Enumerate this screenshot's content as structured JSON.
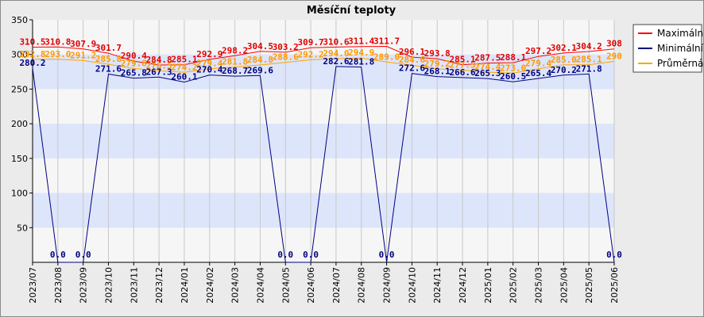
{
  "chart_data": {
    "type": "line",
    "title": "Měsíční teploty",
    "xlabel": "",
    "ylabel": "",
    "ylim": [
      0,
      350
    ],
    "yticks": [
      50,
      100,
      150,
      200,
      250,
      300,
      350
    ],
    "grid": true,
    "legend_position": "top-right",
    "categories": [
      "2023/07",
      "2023/08",
      "2023/09",
      "2023/10",
      "2023/11",
      "2023/12",
      "2024/01",
      "2024/02",
      "2024/03",
      "2024/04",
      "2024/05",
      "2024/06",
      "2024/07",
      "2024/08",
      "2024/09",
      "2024/10",
      "2024/11",
      "2024/12",
      "2025/01",
      "2025/02",
      "2025/03",
      "2025/04",
      "2025/05",
      "2025/06"
    ],
    "series": [
      {
        "name": "Maximální",
        "color": "#ff0000",
        "label_color": "#e00000",
        "values": [
          310.5,
          310.8,
          307.9,
          301.7,
          290.4,
          284.8,
          285.1,
          292.9,
          298.2,
          304.5,
          303.2,
          309.7,
          310.6,
          311.4,
          311.7,
          296.1,
          293.8,
          285.1,
          287.5,
          288.1,
          297.2,
          302.1,
          304.2,
          308.0
        ],
        "labels": [
          "310.5",
          "310.8",
          "307.9",
          "301.7",
          "290.4",
          "284.8",
          "285.1",
          "292.9",
          "298.2",
          "304.5",
          "303.2",
          "309.7",
          "310.6",
          "311.4",
          "311.7",
          "296.1",
          "293.8",
          "285.1",
          "287.5",
          "288.1",
          "297.2",
          "302.1",
          "304.2",
          "308"
        ]
      },
      {
        "name": "Minimální",
        "color": "#000080",
        "label_color": "#000080",
        "values": [
          280.2,
          0.0,
          0.0,
          271.6,
          265.8,
          267.3,
          260.1,
          270.4,
          268.7,
          269.6,
          0.0,
          0.0,
          282.6,
          281.8,
          0.0,
          272.6,
          268.1,
          266.6,
          265.3,
          260.5,
          265.4,
          270.2,
          271.8,
          0.0
        ],
        "labels": [
          "280.2",
          "0.0",
          "0.0",
          "271.6",
          "265.8",
          "267.3",
          "260.1",
          "270.4",
          "268.7",
          "269.6",
          "0.0",
          "0.0",
          "282.6",
          "281.8",
          "0.0",
          "272.6",
          "268.1",
          "266.6",
          "265.3",
          "260.5",
          "265.4",
          "270.2",
          "271.8",
          "0.0"
        ]
      },
      {
        "name": "Průměrná",
        "color": "#ffa500",
        "label_color": "#ff9900",
        "values": [
          292.8,
          293.0,
          291.2,
          285.8,
          279.8,
          276.5,
          274.2,
          279.4,
          281.8,
          284.8,
          288.6,
          292.2,
          294.0,
          294.9,
          289.0,
          284.6,
          279.2,
          277.5,
          274.4,
          273.0,
          279.4,
          285.0,
          285.1,
          290.0
        ],
        "labels": [
          "292.8",
          "293.0",
          "291.2",
          "285.8",
          "279.8",
          "276.5",
          "274.2",
          "279.4",
          "281.8",
          "284.8",
          "288.6",
          "292.2",
          "294.0",
          "294.9",
          "289.0",
          "284.6",
          "279.2",
          "277.5",
          "274.4",
          "273.0",
          "279.4",
          "285.0",
          "285.1",
          "290"
        ]
      }
    ]
  }
}
